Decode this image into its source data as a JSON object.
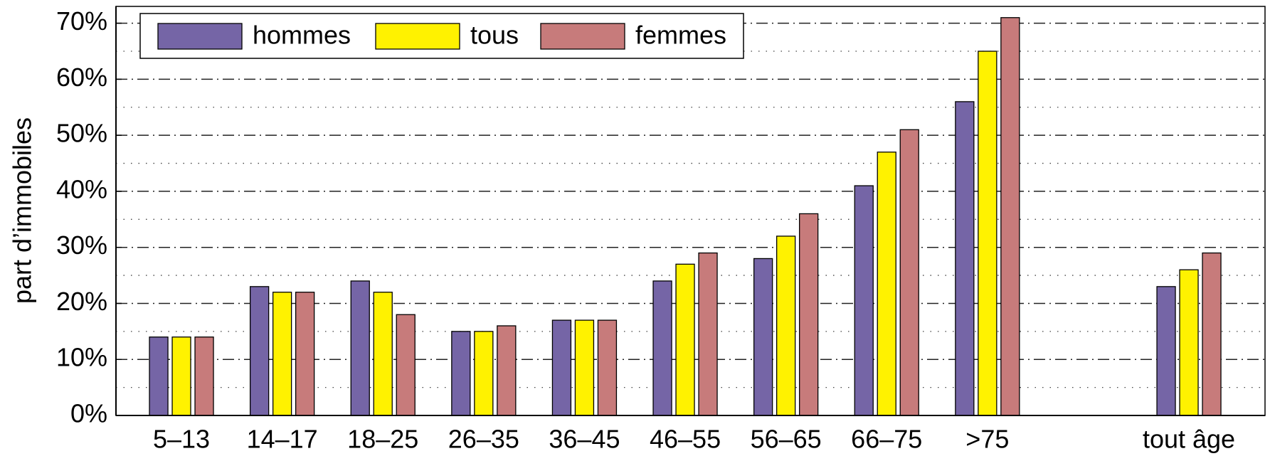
{
  "chart_data": {
    "type": "bar",
    "y_label": "part d’immobiles",
    "categories": [
      "5–13",
      "14–17",
      "18–25",
      "26–35",
      "36–45",
      "46–55",
      "56–65",
      "66–75",
      ">75",
      null,
      "tout âge"
    ],
    "series": [
      {
        "name": "hommes",
        "color": "#7565a6",
        "values": [
          14,
          23,
          24,
          15,
          17,
          24,
          28,
          41,
          56,
          null,
          23
        ]
      },
      {
        "name": "tous",
        "color": "#fff200",
        "values": [
          14,
          22,
          22,
          15,
          17,
          27,
          32,
          47,
          65,
          null,
          26
        ]
      },
      {
        "name": "femmes",
        "color": "#c77b7b",
        "values": [
          14,
          22,
          18,
          16,
          17,
          29,
          36,
          51,
          71,
          null,
          29
        ]
      }
    ],
    "ylim": [
      0,
      73
    ],
    "yticks": [
      {
        "value": 0,
        "label": "0%"
      },
      {
        "value": 10,
        "label": "10%"
      },
      {
        "value": 20,
        "label": "20%"
      },
      {
        "value": 30,
        "label": "30%"
      },
      {
        "value": 40,
        "label": "40%"
      },
      {
        "value": 50,
        "label": "50%"
      },
      {
        "value": 60,
        "label": "60%"
      },
      {
        "value": 70,
        "label": "70%"
      }
    ],
    "minor_yticks": [
      5,
      15,
      25,
      35,
      45,
      55,
      65
    ],
    "grid": true,
    "legend": "upper left"
  }
}
